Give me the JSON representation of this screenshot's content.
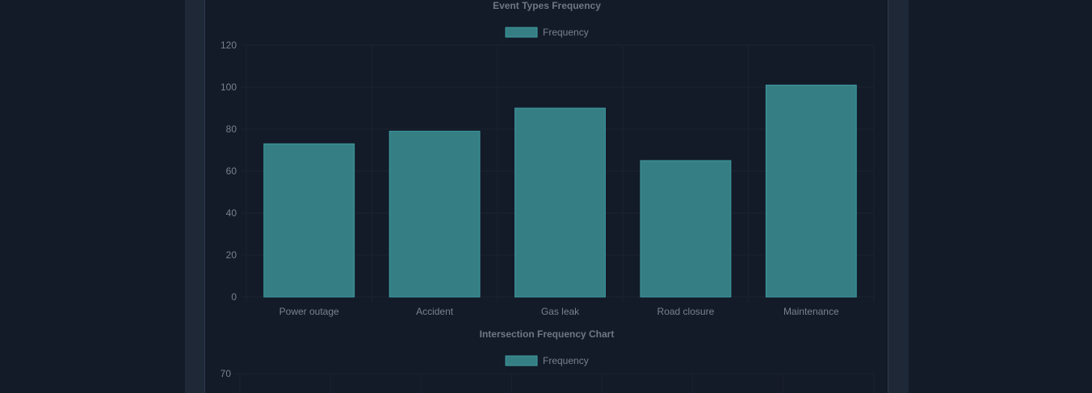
{
  "colors": {
    "background": "#131a28",
    "panel": "#1e2837",
    "bar_fill": "#357f84",
    "bar_border": "#3e9aa0",
    "grid": "#1b2231",
    "text": "#7a828e"
  },
  "chart_data": [
    {
      "type": "bar",
      "title": "Event Types Frequency",
      "categories": [
        "Power outage",
        "Accident",
        "Gas leak",
        "Road closure",
        "Maintenance"
      ],
      "series": [
        {
          "name": "Frequency",
          "values": [
            73,
            79,
            90,
            65,
            101
          ]
        }
      ],
      "ylim": [
        0,
        120
      ],
      "yticks": [
        "0",
        "20",
        "40",
        "60",
        "80",
        "100",
        "120"
      ],
      "grid": true,
      "legend": "top-center"
    },
    {
      "type": "bar",
      "title": "Intersection Frequency Chart",
      "categories": [],
      "series": [
        {
          "name": "Frequency",
          "values": []
        }
      ],
      "yticks_visible": [
        "70"
      ],
      "grid": true,
      "legend": "top-center"
    }
  ]
}
